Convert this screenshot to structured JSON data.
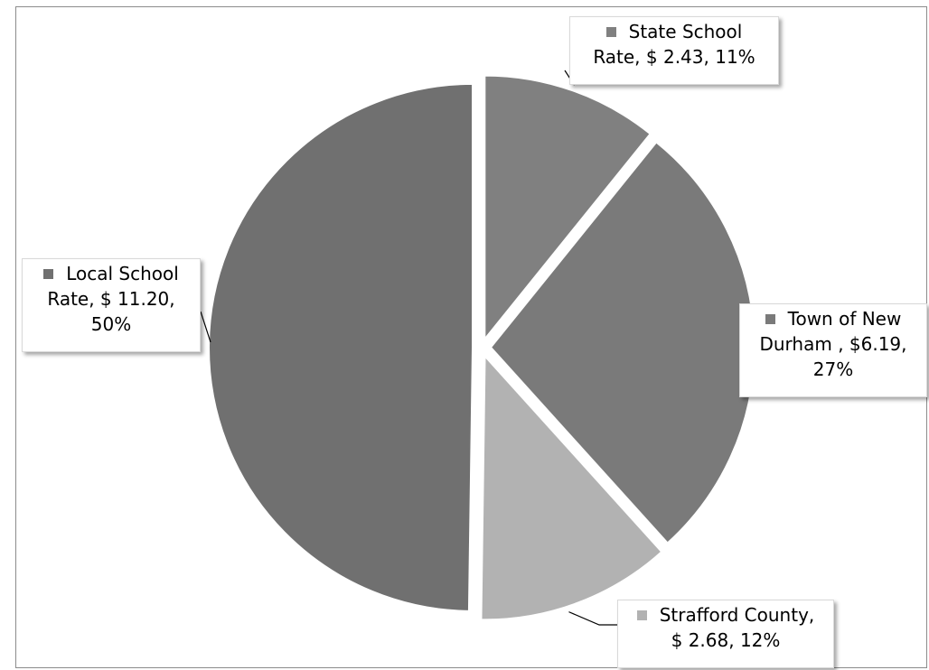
{
  "colors": {
    "frame_border": "#8c8c8c",
    "leader_line": "#000000"
  },
  "chart_data": {
    "type": "pie",
    "title": "",
    "slices": [
      {
        "line1": "State School",
        "line2": "Rate, $ 2.43, 11%",
        "line3": "",
        "value": 2.43,
        "percent": 11,
        "color": "#808080"
      },
      {
        "line1": "Town of New",
        "line2": "Durham , $6.19,",
        "line3": "27%",
        "value": 6.19,
        "percent": 27,
        "color": "#7a7a7a"
      },
      {
        "line1": "Strafford County,",
        "line2": "$ 2.68, 12%",
        "line3": "",
        "value": 2.68,
        "percent": 12,
        "color": "#b2b2b2"
      },
      {
        "line1": "Local School",
        "line2": "Rate, $ 11.20,",
        "line3": "50%",
        "value": 11.2,
        "percent": 50,
        "color": "#707070"
      }
    ],
    "start_angle": "12 o'clock",
    "direction": "clockwise",
    "exploded": true,
    "legend": "none (data callouts)"
  }
}
